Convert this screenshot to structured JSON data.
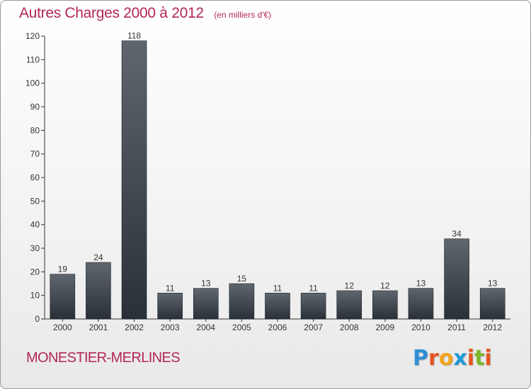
{
  "header": {
    "title": "Autres Charges 2000 à 2012",
    "subtitle": "(en milliers d'€)"
  },
  "footer": {
    "commune": "MONESTIER-MERLINES",
    "logo_letters": [
      {
        "char": "P",
        "color": "#2f8fd6"
      },
      {
        "char": "r",
        "color": "#e8541e"
      },
      {
        "char": "o",
        "color": "#f2a51a"
      },
      {
        "char": "x",
        "color": "#1d9ad8"
      },
      {
        "char": "i",
        "color": "#e8541e"
      },
      {
        "char": "t",
        "color": "#7bb52a"
      },
      {
        "char": "i",
        "color": "#e8541e"
      }
    ]
  },
  "chart_data": {
    "type": "bar",
    "categories": [
      "2000",
      "2001",
      "2002",
      "2003",
      "2004",
      "2005",
      "2006",
      "2007",
      "2008",
      "2009",
      "2010",
      "2011",
      "2012"
    ],
    "values": [
      19,
      24,
      118,
      11,
      13,
      15,
      11,
      11,
      12,
      12,
      13,
      34,
      13
    ],
    "ylim": [
      0,
      120
    ],
    "yticks": [
      0,
      10,
      20,
      30,
      40,
      50,
      60,
      70,
      80,
      90,
      100,
      110,
      120
    ],
    "bar_color_top": "#5f666d",
    "bar_color_bottom": "#2a3037",
    "grid": false
  }
}
